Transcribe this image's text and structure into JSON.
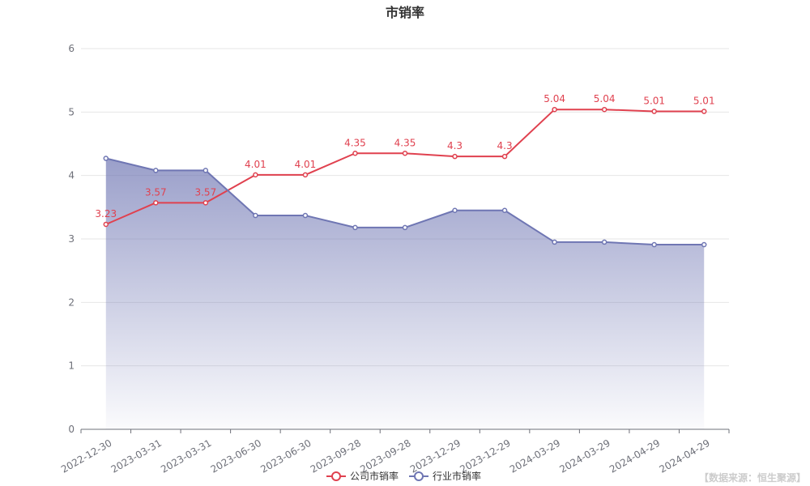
{
  "chart_data": {
    "type": "line",
    "title": "市销率",
    "xlabel": "",
    "ylabel": "",
    "ylim": [
      0,
      6
    ],
    "yticks": [
      0,
      1,
      2,
      3,
      4,
      5,
      6
    ],
    "grid": true,
    "legend_position": "bottom-center",
    "categories": [
      "2022-12-30",
      "2023-03-31",
      "2023-03-31",
      "2023-06-30",
      "2023-06-30",
      "2023-09-28",
      "2023-09-28",
      "2023-12-29",
      "2023-12-29",
      "2024-03-29",
      "2024-03-29",
      "2024-04-29",
      "2024-04-29"
    ],
    "series": [
      {
        "name": "公司市销率",
        "color": "#e0414f",
        "show_labels": true,
        "area": false,
        "values": [
          3.23,
          3.57,
          3.57,
          4.01,
          4.01,
          4.35,
          4.35,
          4.3,
          4.3,
          5.04,
          5.04,
          5.01,
          5.01
        ]
      },
      {
        "name": "行业市销率",
        "color": "#6f76b3",
        "show_labels": false,
        "area": true,
        "values": [
          4.27,
          4.08,
          4.08,
          3.37,
          3.37,
          3.18,
          3.18,
          3.45,
          3.45,
          2.95,
          2.95,
          2.91,
          2.91
        ]
      }
    ],
    "source": "【数据来源：恒生聚源】"
  }
}
